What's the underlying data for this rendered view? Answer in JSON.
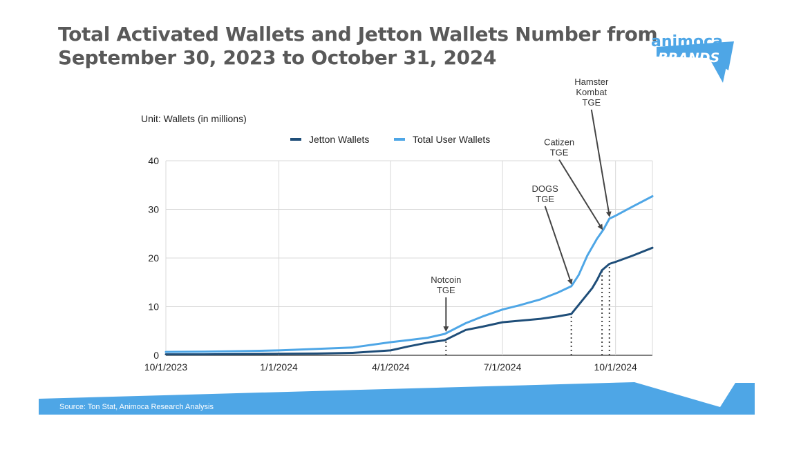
{
  "header": {
    "title_line1": "Total Activated Wallets and Jetton Wallets Number from",
    "title_line2": "September 30, 2023 to October 31, 2024"
  },
  "logo": {
    "line1": "animoca",
    "line2": "BRANDS",
    "color": "#4EA6E6"
  },
  "footer": {
    "source": "Source: Ton Stat, Animoca Research Analysis",
    "color": "#4EA6E6"
  },
  "chart_data": {
    "type": "line",
    "unit_label": "Unit: Wallets (in millions)",
    "x_start": "2023-10-01",
    "x_end": "2024-10-31",
    "x_ticks": [
      {
        "date": "2023-10-01",
        "label": "10/1/2023"
      },
      {
        "date": "2024-01-01",
        "label": "1/1/2024"
      },
      {
        "date": "2024-04-01",
        "label": "4/1/2024"
      },
      {
        "date": "2024-07-01",
        "label": "7/1/2024"
      },
      {
        "date": "2024-10-01",
        "label": "10/1/2024"
      }
    ],
    "ylim": [
      0,
      40
    ],
    "y_ticks": [
      0,
      10,
      20,
      30,
      40
    ],
    "grid": true,
    "legend_position": "top",
    "series": [
      {
        "name": "Jetton Wallets",
        "color": "#1F4E79",
        "points": [
          [
            "2023-10-01",
            0.2
          ],
          [
            "2023-11-01",
            0.2
          ],
          [
            "2023-12-01",
            0.25
          ],
          [
            "2024-01-01",
            0.3
          ],
          [
            "2024-02-01",
            0.35
          ],
          [
            "2024-03-01",
            0.5
          ],
          [
            "2024-04-01",
            1.0
          ],
          [
            "2024-04-15",
            1.8
          ],
          [
            "2024-05-01",
            2.6
          ],
          [
            "2024-05-15",
            3.1
          ],
          [
            "2024-06-01",
            5.2
          ],
          [
            "2024-06-15",
            5.9
          ],
          [
            "2024-07-01",
            6.8
          ],
          [
            "2024-07-15",
            7.1
          ],
          [
            "2024-08-01",
            7.5
          ],
          [
            "2024-08-15",
            8.0
          ],
          [
            "2024-08-26",
            8.5
          ],
          [
            "2024-09-12",
            13.8
          ],
          [
            "2024-09-16",
            15.5
          ],
          [
            "2024-09-20",
            17.5
          ],
          [
            "2024-09-26",
            18.8
          ],
          [
            "2024-10-01",
            19.2
          ],
          [
            "2024-10-15",
            20.5
          ],
          [
            "2024-10-31",
            22.1
          ]
        ]
      },
      {
        "name": "Total User Wallets",
        "color": "#4EA6E6",
        "points": [
          [
            "2023-10-01",
            0.7
          ],
          [
            "2023-11-01",
            0.75
          ],
          [
            "2023-12-01",
            0.85
          ],
          [
            "2024-01-01",
            1.0
          ],
          [
            "2024-02-01",
            1.3
          ],
          [
            "2024-03-01",
            1.6
          ],
          [
            "2024-04-01",
            2.7
          ],
          [
            "2024-04-15",
            3.1
          ],
          [
            "2024-05-01",
            3.6
          ],
          [
            "2024-05-15",
            4.4
          ],
          [
            "2024-06-01",
            6.6
          ],
          [
            "2024-06-15",
            8.0
          ],
          [
            "2024-07-01",
            9.4
          ],
          [
            "2024-07-15",
            10.3
          ],
          [
            "2024-08-01",
            11.5
          ],
          [
            "2024-08-15",
            12.9
          ],
          [
            "2024-08-26",
            14.2
          ],
          [
            "2024-09-01",
            16.5
          ],
          [
            "2024-09-08",
            20.5
          ],
          [
            "2024-09-16",
            24.0
          ],
          [
            "2024-09-21",
            25.8
          ],
          [
            "2024-09-26",
            28.1
          ],
          [
            "2024-10-01",
            28.7
          ],
          [
            "2024-10-15",
            30.6
          ],
          [
            "2024-10-31",
            32.7
          ]
        ]
      }
    ],
    "annotations": [
      {
        "lines": [
          "Notcoin",
          "TGE"
        ],
        "date": "2024-05-16"
      },
      {
        "lines": [
          "DOGS",
          "TGE"
        ],
        "date": "2024-08-26"
      },
      {
        "lines": [
          "Catizen",
          "TGE"
        ],
        "date": "2024-09-20"
      },
      {
        "lines": [
          "Hamster",
          "Kombat",
          "TGE"
        ],
        "date": "2024-09-26"
      }
    ]
  }
}
